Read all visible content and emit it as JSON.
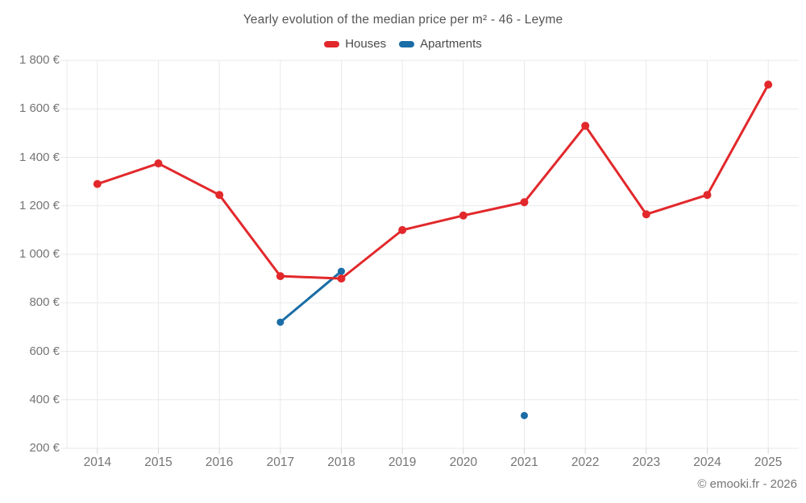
{
  "chart_data": {
    "type": "line",
    "title": "Yearly evolution of the median price per m² - 46 - Leyme",
    "categories": [
      "2014",
      "2015",
      "2016",
      "2017",
      "2018",
      "2019",
      "2020",
      "2021",
      "2022",
      "2023",
      "2024",
      "2025"
    ],
    "series": [
      {
        "name": "Houses",
        "color": "#e2282b",
        "values": [
          1290,
          1375,
          1245,
          910,
          900,
          1100,
          1160,
          1215,
          1530,
          1165,
          1245,
          1700
        ]
      },
      {
        "name": "Apartments",
        "color": "#1a6da6",
        "values": [
          null,
          null,
          null,
          720,
          930,
          null,
          null,
          335,
          null,
          null,
          null,
          null
        ]
      }
    ],
    "ylim": [
      200,
      1800
    ],
    "ytick_step": 200,
    "ytick_labels": [
      "200 €",
      "400 €",
      "600 €",
      "800 €",
      "1 000 €",
      "1 200 €",
      "1 400 €",
      "1 600 €",
      "1 800 €"
    ],
    "grid": true,
    "legend_position": "top",
    "currency": "€"
  },
  "footer": {
    "credit": "© emooki.fr - 2026"
  },
  "style": {
    "grid_color": "#e9e9e9",
    "tick_color": "#d6d6d6",
    "axis_text_color": "#757575",
    "title_color": "#555555"
  }
}
